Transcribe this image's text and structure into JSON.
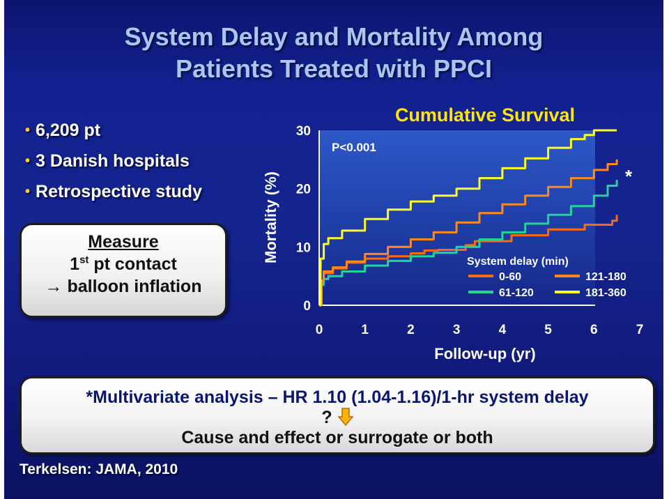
{
  "slide": {
    "title_line1": "System Delay and Mortality Among",
    "title_line2": "Patients Treated with PPCI",
    "bullets": [
      "6,209 pt",
      "3 Danish hospitals",
      "Retrospective study"
    ],
    "measure": {
      "heading": "Measure",
      "line1_prefix": "1",
      "line1_sup": "st",
      "line1_rest": " pt contact",
      "line2_arrow": "→",
      "line2_rest": " balloon inflation"
    },
    "bottom_box": {
      "hr_text": "*Multivariate analysis – HR 1.10 (1.04-1.16)/1-hr system delay",
      "question": "?",
      "cause_text": "Cause and effect or surrogate or both"
    },
    "citation": "Terkelsen: JAMA, 2010"
  },
  "colors": {
    "background": "#132090",
    "title": "#a9c6f2",
    "bullet_dot": "#ffd800",
    "chart_title": "#ffe800",
    "plot_background": "#2a50bf",
    "series_0_60": "#ff6a10",
    "series_61_120": "#22d49a",
    "series_121_180": "#ff8a1c",
    "series_181_360": "#ffff22",
    "down_arrow": "#ffb400"
  },
  "icons": [
    "down-arrow-icon",
    "right-arrow-icon"
  ],
  "chart_data": {
    "type": "line",
    "title": "Cumulative Survival",
    "annotation": "P<0.001",
    "significance_marker": "*",
    "xlabel": "Follow-up (yr)",
    "ylabel": "Mortality (%)",
    "xlim": [
      0,
      7
    ],
    "ylim": [
      0,
      30
    ],
    "x_ticks": [
      0,
      1,
      2,
      3,
      4,
      5,
      6,
      7
    ],
    "y_ticks": [
      0,
      10,
      20,
      30
    ],
    "step": true,
    "grid": false,
    "legend_title": "System delay (min)",
    "legend_position": "bottom-right",
    "series": [
      {
        "name": "0-60",
        "color": "#ff6a10",
        "x": [
          0,
          0.05,
          0.1,
          0.3,
          0.6,
          1,
          1.5,
          2,
          2.3,
          2.6,
          3.2,
          3.4,
          4.2,
          5.0,
          5.8,
          6.4,
          6.5
        ],
        "y": [
          0,
          3.8,
          5.5,
          6.3,
          7.3,
          8.0,
          8.4,
          8.9,
          9.4,
          9.5,
          10.3,
          11.0,
          12.0,
          13.0,
          13.8,
          14.5,
          15.5
        ]
      },
      {
        "name": "61-120",
        "color": "#22d49a",
        "x": [
          0,
          0.05,
          0.1,
          0.2,
          0.5,
          1,
          1.5,
          2,
          2.5,
          3,
          3.5,
          4,
          4.5,
          5,
          5.5,
          6,
          6.3,
          6.5
        ],
        "y": [
          0,
          3.5,
          4.5,
          5.0,
          5.8,
          6.8,
          7.6,
          8.4,
          9.0,
          10.0,
          11.3,
          12.5,
          14.0,
          15.5,
          17.0,
          18.8,
          20.5,
          21.5
        ]
      },
      {
        "name": "121-180",
        "color": "#ff8a1c",
        "x": [
          0,
          0.05,
          0.1,
          0.3,
          0.6,
          1,
          1.5,
          2,
          2.5,
          3,
          3.5,
          4,
          4.5,
          5,
          5.5,
          6,
          6.3,
          6.5
        ],
        "y": [
          0,
          4.2,
          5.8,
          6.5,
          7.5,
          8.8,
          10.0,
          11.3,
          12.5,
          14.2,
          15.8,
          17.3,
          18.8,
          20.3,
          21.8,
          23.2,
          24.2,
          25.0
        ]
      },
      {
        "name": "181-360",
        "color": "#ffff22",
        "x": [
          0,
          0.03,
          0.1,
          0.2,
          0.5,
          1,
          1.5,
          2,
          2.5,
          3,
          3.5,
          4,
          4.5,
          5,
          5.5,
          5.8,
          6.0,
          6.5
        ],
        "y": [
          0,
          8.0,
          10.5,
          11.5,
          12.8,
          14.8,
          16.4,
          17.8,
          18.8,
          20.0,
          21.8,
          23.5,
          25.2,
          27.0,
          28.5,
          29.2,
          30.0,
          30.0
        ]
      }
    ]
  }
}
